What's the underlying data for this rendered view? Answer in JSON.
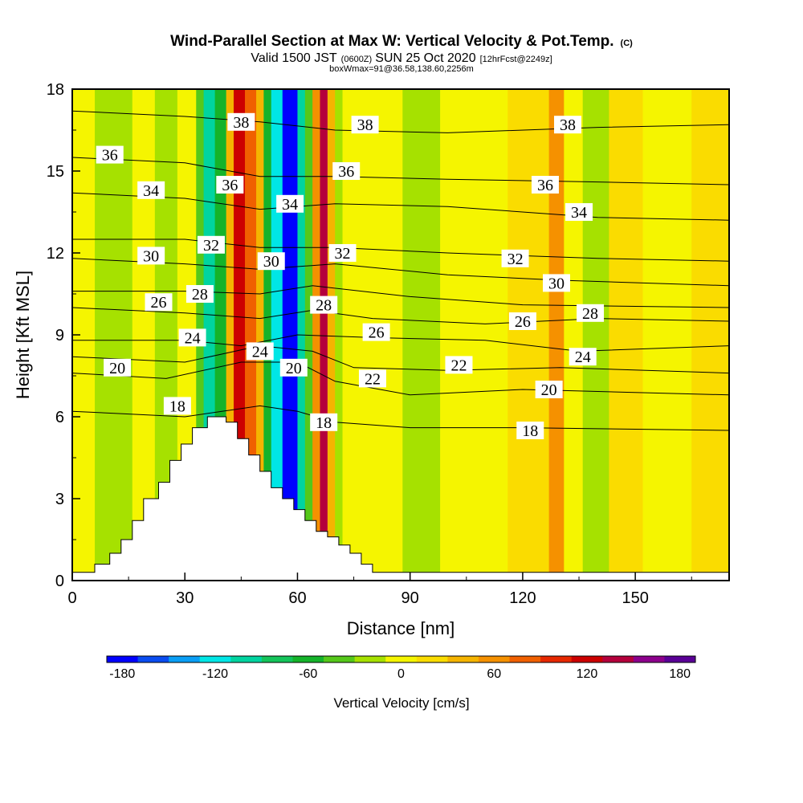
{
  "title": {
    "main": "Wind-Parallel Section at Max W: Vertical Velocity & Pot.Temp.",
    "copyright": "(C)",
    "valid_prefix": "Valid 1500 JST",
    "valid_utc": "(0600Z)",
    "valid_date": "SUN 25 Oct 2020",
    "forecast": "[12hrFcst@2249z]",
    "boxinfo": "boxWmax=91@36.58,138.60,2256m"
  },
  "chart_data": {
    "type": "heatmap",
    "title": "Wind-Parallel Section at Max W: Vertical Velocity & Pot.Temp.",
    "xlabel": "Distance [nm]",
    "ylabel": "Height [Kft MSL]",
    "xlim": [
      0,
      175
    ],
    "ylim": [
      0,
      18
    ],
    "x_ticks": [
      0,
      30,
      60,
      90,
      120,
      150
    ],
    "y_ticks": [
      0,
      3,
      6,
      9,
      12,
      15,
      18
    ],
    "colorbar": {
      "label": "Vertical Velocity [cm/s]",
      "tick_values": [
        -180,
        -120,
        -60,
        0,
        60,
        120,
        180
      ],
      "colors": [
        "#0000ff",
        "#0a4cf0",
        "#0a9ef5",
        "#00e6e6",
        "#00d4a0",
        "#14c45a",
        "#15b32a",
        "#55c81a",
        "#a6e100",
        "#f5f500",
        "#fadc00",
        "#f5b400",
        "#f59100",
        "#f06000",
        "#e62800",
        "#cc0000",
        "#b4003c",
        "#8c008c",
        "#5a0096"
      ],
      "value_range": [
        -190,
        190
      ]
    },
    "velocity_columns": [
      {
        "x0": 0,
        "x1": 6,
        "w": 2
      },
      {
        "x0": 6,
        "x1": 16,
        "w": -12
      },
      {
        "x0": 16,
        "x1": 22,
        "w": -2
      },
      {
        "x0": 22,
        "x1": 28,
        "w": -20
      },
      {
        "x0": 28,
        "x1": 33,
        "w": 6
      },
      {
        "x0": 33,
        "x1": 35,
        "w": -40
      },
      {
        "x0": 35,
        "x1": 38,
        "w": -95
      },
      {
        "x0": 38,
        "x1": 41,
        "w": -55
      },
      {
        "x0": 41,
        "x1": 43,
        "w": 40
      },
      {
        "x0": 43,
        "x1": 46,
        "w": 120
      },
      {
        "x0": 46,
        "x1": 49,
        "w": 85
      },
      {
        "x0": 49,
        "x1": 51,
        "w": 30
      },
      {
        "x0": 51,
        "x1": 53,
        "w": -60
      },
      {
        "x0": 53,
        "x1": 56,
        "w": -130
      },
      {
        "x0": 56,
        "x1": 60,
        "w": -175
      },
      {
        "x0": 60,
        "x1": 62,
        "w": -110
      },
      {
        "x0": 62,
        "x1": 64,
        "w": -40
      },
      {
        "x0": 64,
        "x1": 66,
        "w": 50
      },
      {
        "x0": 66,
        "x1": 68,
        "w": 140
      },
      {
        "x0": 68,
        "x1": 70,
        "w": 45
      },
      {
        "x0": 70,
        "x1": 72,
        "w": -30
      },
      {
        "x0": 72,
        "x1": 88,
        "w": 5
      },
      {
        "x0": 88,
        "x1": 98,
        "w": -15
      },
      {
        "x0": 98,
        "x1": 110,
        "w": 6
      },
      {
        "x0": 110,
        "x1": 116,
        "w": -4
      },
      {
        "x0": 116,
        "x1": 127,
        "w": 22
      },
      {
        "x0": 127,
        "x1": 131,
        "w": 50
      },
      {
        "x0": 131,
        "x1": 136,
        "w": 8
      },
      {
        "x0": 136,
        "x1": 143,
        "w": -25
      },
      {
        "x0": 143,
        "x1": 152,
        "w": 10
      },
      {
        "x0": 152,
        "x1": 165,
        "w": 2
      },
      {
        "x0": 165,
        "x1": 175,
        "w": 14
      }
    ],
    "terrain": [
      [
        0,
        0.3
      ],
      [
        6,
        0.3
      ],
      [
        6,
        0.6
      ],
      [
        10,
        0.6
      ],
      [
        10,
        1.0
      ],
      [
        13,
        1.0
      ],
      [
        13,
        1.5
      ],
      [
        16,
        1.5
      ],
      [
        16,
        2.2
      ],
      [
        19,
        2.2
      ],
      [
        19,
        3.0
      ],
      [
        23,
        3.0
      ],
      [
        23,
        3.6
      ],
      [
        26,
        3.6
      ],
      [
        26,
        4.4
      ],
      [
        29,
        4.4
      ],
      [
        29,
        5.0
      ],
      [
        32,
        5.0
      ],
      [
        32,
        5.6
      ],
      [
        36,
        5.6
      ],
      [
        36,
        6.0
      ],
      [
        41,
        6.0
      ],
      [
        41,
        5.8
      ],
      [
        44,
        5.8
      ],
      [
        44,
        5.2
      ],
      [
        47,
        5.2
      ],
      [
        47,
        4.6
      ],
      [
        50,
        4.6
      ],
      [
        50,
        4.0
      ],
      [
        53,
        4.0
      ],
      [
        53,
        3.4
      ],
      [
        56,
        3.4
      ],
      [
        56,
        3.0
      ],
      [
        59,
        3.0
      ],
      [
        59,
        2.6
      ],
      [
        62,
        2.6
      ],
      [
        62,
        2.2
      ],
      [
        65,
        2.2
      ],
      [
        65,
        1.8
      ],
      [
        68,
        1.8
      ],
      [
        68,
        1.6
      ],
      [
        71,
        1.6
      ],
      [
        71,
        1.3
      ],
      [
        74,
        1.3
      ],
      [
        74,
        1.0
      ],
      [
        77,
        1.0
      ],
      [
        77,
        0.6
      ],
      [
        80,
        0.6
      ],
      [
        80,
        0.3
      ],
      [
        175,
        0.3
      ]
    ],
    "theta_contours": [
      {
        "label": "18",
        "points": [
          [
            0,
            6.2
          ],
          [
            30,
            6.0
          ],
          [
            50,
            6.4
          ],
          [
            60,
            6.2
          ],
          [
            70,
            5.8
          ],
          [
            90,
            5.6
          ],
          [
            120,
            5.6
          ],
          [
            175,
            5.5
          ]
        ],
        "labels_at": [
          [
            28,
            6.4
          ],
          [
            67,
            5.8
          ],
          [
            122,
            5.5
          ]
        ]
      },
      {
        "label": "20",
        "points": [
          [
            0,
            7.6
          ],
          [
            25,
            7.4
          ],
          [
            45,
            8.0
          ],
          [
            60,
            8.0
          ],
          [
            70,
            7.3
          ],
          [
            90,
            6.8
          ],
          [
            120,
            7.0
          ],
          [
            175,
            6.8
          ]
        ],
        "labels_at": [
          [
            12,
            7.8
          ],
          [
            59,
            7.8
          ],
          [
            127,
            7.0
          ]
        ]
      },
      {
        "label": "22",
        "points": [
          [
            0,
            8.2
          ],
          [
            30,
            8.0
          ],
          [
            50,
            8.6
          ],
          [
            64,
            8.4
          ],
          [
            75,
            7.8
          ],
          [
            100,
            7.7
          ],
          [
            130,
            7.8
          ],
          [
            175,
            7.6
          ]
        ],
        "labels_at": [
          [
            80,
            7.4
          ],
          [
            103,
            7.9
          ]
        ]
      },
      {
        "label": "24",
        "points": [
          [
            0,
            8.8
          ],
          [
            30,
            8.8
          ],
          [
            45,
            8.6
          ],
          [
            60,
            9.0
          ],
          [
            80,
            8.9
          ],
          [
            110,
            8.8
          ],
          [
            135,
            8.4
          ],
          [
            175,
            8.6
          ]
        ],
        "labels_at": [
          [
            32,
            8.9
          ],
          [
            50,
            8.4
          ],
          [
            136,
            8.2
          ]
        ]
      },
      {
        "label": "26",
        "points": [
          [
            0,
            10.0
          ],
          [
            30,
            9.8
          ],
          [
            50,
            9.6
          ],
          [
            64,
            9.9
          ],
          [
            80,
            9.6
          ],
          [
            110,
            9.4
          ],
          [
            140,
            9.6
          ],
          [
            175,
            9.5
          ]
        ],
        "labels_at": [
          [
            23,
            10.2
          ],
          [
            81,
            9.1
          ],
          [
            120,
            9.5
          ]
        ]
      },
      {
        "label": "28",
        "points": [
          [
            0,
            10.6
          ],
          [
            30,
            10.6
          ],
          [
            50,
            10.5
          ],
          [
            64,
            10.8
          ],
          [
            90,
            10.4
          ],
          [
            120,
            10.1
          ],
          [
            175,
            10.0
          ]
        ],
        "labels_at": [
          [
            34,
            10.5
          ],
          [
            67,
            10.1
          ],
          [
            138,
            9.8
          ]
        ]
      },
      {
        "label": "30",
        "points": [
          [
            0,
            11.8
          ],
          [
            30,
            11.6
          ],
          [
            50,
            11.4
          ],
          [
            70,
            11.6
          ],
          [
            100,
            11.2
          ],
          [
            130,
            11.0
          ],
          [
            175,
            10.8
          ]
        ],
        "labels_at": [
          [
            21,
            11.9
          ],
          [
            53,
            11.7
          ],
          [
            129,
            10.9
          ]
        ]
      },
      {
        "label": "32",
        "points": [
          [
            0,
            12.5
          ],
          [
            30,
            12.5
          ],
          [
            50,
            12.2
          ],
          [
            70,
            12.2
          ],
          [
            100,
            12.0
          ],
          [
            140,
            11.8
          ],
          [
            175,
            11.7
          ]
        ],
        "labels_at": [
          [
            37,
            12.3
          ],
          [
            72,
            12.0
          ],
          [
            118,
            11.8
          ]
        ]
      },
      {
        "label": "34",
        "points": [
          [
            0,
            14.2
          ],
          [
            30,
            14.0
          ],
          [
            50,
            13.6
          ],
          [
            70,
            13.8
          ],
          [
            100,
            13.7
          ],
          [
            140,
            13.3
          ],
          [
            175,
            13.2
          ]
        ],
        "labels_at": [
          [
            21,
            14.3
          ],
          [
            58,
            13.8
          ],
          [
            135,
            13.5
          ]
        ]
      },
      {
        "label": "36",
        "points": [
          [
            0,
            15.5
          ],
          [
            30,
            15.3
          ],
          [
            50,
            14.8
          ],
          [
            70,
            14.8
          ],
          [
            100,
            14.7
          ],
          [
            140,
            14.6
          ],
          [
            175,
            14.5
          ]
        ],
        "labels_at": [
          [
            10,
            15.6
          ],
          [
            42,
            14.5
          ],
          [
            73,
            15.0
          ],
          [
            126,
            14.5
          ]
        ]
      },
      {
        "label": "38",
        "points": [
          [
            0,
            17.2
          ],
          [
            30,
            17.0
          ],
          [
            50,
            16.8
          ],
          [
            70,
            16.5
          ],
          [
            100,
            16.4
          ],
          [
            140,
            16.6
          ],
          [
            175,
            16.7
          ]
        ],
        "labels_at": [
          [
            45,
            16.8
          ],
          [
            78,
            16.7
          ],
          [
            132,
            16.7
          ]
        ]
      }
    ]
  }
}
